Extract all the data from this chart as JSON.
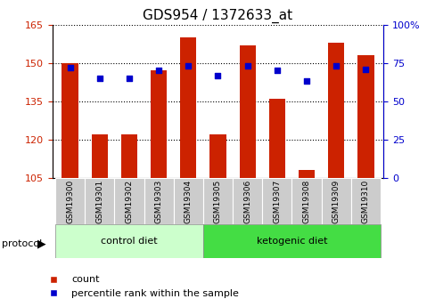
{
  "title": "GDS954 / 1372633_at",
  "samples": [
    "GSM19300",
    "GSM19301",
    "GSM19302",
    "GSM19303",
    "GSM19304",
    "GSM19305",
    "GSM19306",
    "GSM19307",
    "GSM19308",
    "GSM19309",
    "GSM19310"
  ],
  "counts": [
    150,
    122,
    122,
    147,
    160,
    122,
    157,
    136,
    108,
    158,
    153
  ],
  "percentile_ranks": [
    72,
    65,
    65,
    70,
    73,
    67,
    73,
    70,
    63,
    73,
    71
  ],
  "ylim_left": [
    105,
    165
  ],
  "ylim_right": [
    0,
    100
  ],
  "yticks_left": [
    105,
    120,
    135,
    150,
    165
  ],
  "yticks_right": [
    0,
    25,
    50,
    75,
    100
  ],
  "ytick_labels_left": [
    "105",
    "120",
    "135",
    "150",
    "165"
  ],
  "ytick_labels_right": [
    "0",
    "25",
    "50",
    "75",
    "100%"
  ],
  "bar_color": "#cc2200",
  "dot_color": "#0000cc",
  "bar_width": 0.55,
  "groups": [
    {
      "label": "control diet",
      "start": 0,
      "end": 5,
      "color": "#ccffcc"
    },
    {
      "label": "ketogenic diet",
      "start": 5,
      "end": 11,
      "color": "#44dd44"
    }
  ],
  "protocol_label": "protocol",
  "legend_items": [
    {
      "label": "count",
      "color": "#cc2200"
    },
    {
      "label": "percentile rank within the sample",
      "color": "#0000cc"
    }
  ],
  "bg_color": "#ffffff",
  "grid_color": "#000000",
  "tick_color_left": "#cc2200",
  "tick_color_right": "#0000cc",
  "title_fontsize": 11,
  "tick_fontsize": 8
}
